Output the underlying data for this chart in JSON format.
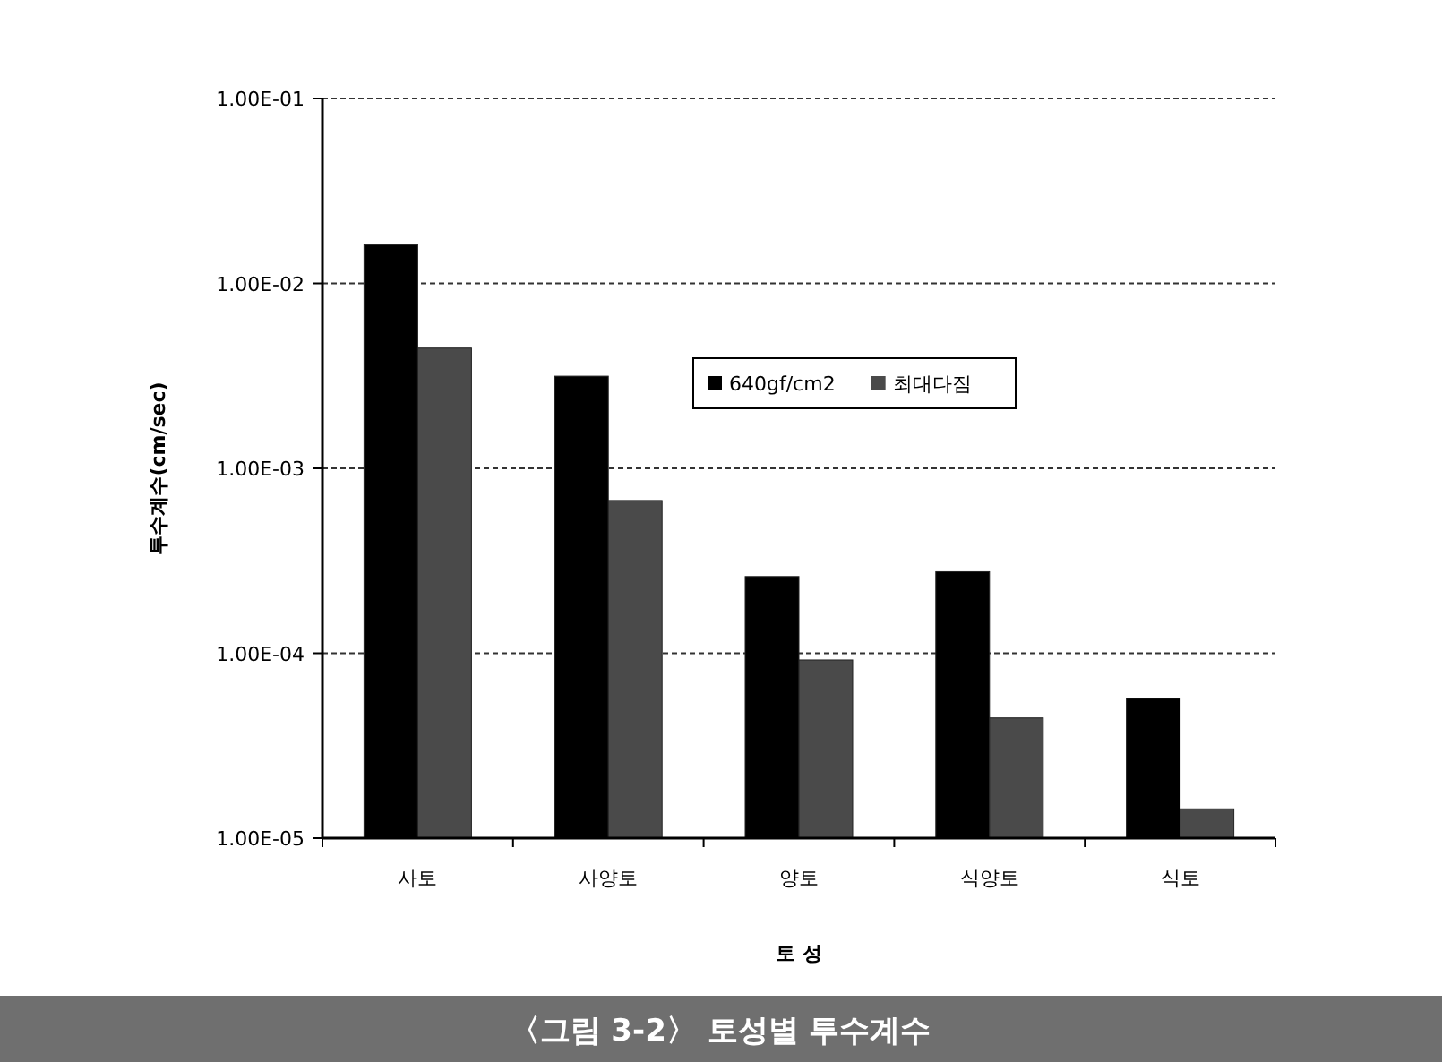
{
  "chart_data": {
    "type": "bar",
    "title": "〈그림 3-2〉 토성별 투수계수",
    "xlabel": "토 성",
    "ylabel": "투수계수(cm/sec)",
    "categories": [
      "사토",
      "사양토",
      "양토",
      "식양토",
      "식토"
    ],
    "series": [
      {
        "name": "640gf/cm2",
        "color": "#000000",
        "values": [
          0.0162,
          0.00315,
          0.00026,
          0.000276,
          5.7e-05
        ]
      },
      {
        "name": "최대다짐",
        "color": "#4a4a4a",
        "values": [
          0.00447,
          0.00067,
          9.2e-05,
          4.47e-05,
          1.44e-05
        ]
      }
    ],
    "log": "y",
    "ylim": [
      1e-05,
      0.1
    ],
    "yticks": [
      {
        "value": 1e-05,
        "label": "1.00E-05"
      },
      {
        "value": 0.0001,
        "label": "1.00E-04"
      },
      {
        "value": 0.001,
        "label": "1.00E-03"
      },
      {
        "value": 0.01,
        "label": "1.00E-02"
      },
      {
        "value": 0.1,
        "label": "1.00E-01"
      }
    ],
    "grid": "y",
    "legend": "center"
  }
}
